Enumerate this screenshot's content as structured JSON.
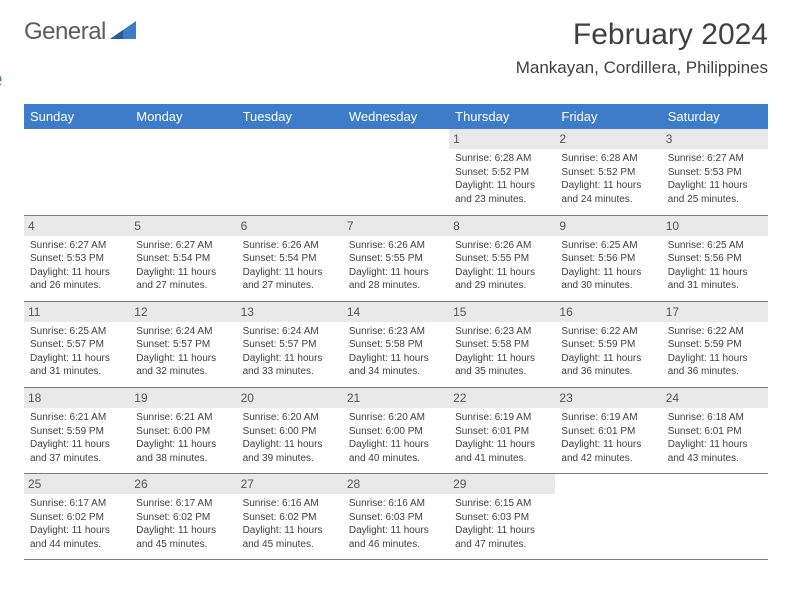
{
  "brand": {
    "part1": "General",
    "part2": "Blue"
  },
  "title": "February 2024",
  "location": "Mankayan, Cordillera, Philippines",
  "colors": {
    "header_bg": "#3d7cc9",
    "header_text": "#ffffff",
    "daybar_bg": "#e9e9e9",
    "border": "#7a7a7a",
    "text": "#404040"
  },
  "weekdays": [
    "Sunday",
    "Monday",
    "Tuesday",
    "Wednesday",
    "Thursday",
    "Friday",
    "Saturday"
  ],
  "weeks": [
    [
      null,
      null,
      null,
      null,
      {
        "n": "1",
        "sunrise": "6:28 AM",
        "sunset": "5:52 PM",
        "dlh": "11",
        "dlm": "23"
      },
      {
        "n": "2",
        "sunrise": "6:28 AM",
        "sunset": "5:52 PM",
        "dlh": "11",
        "dlm": "24"
      },
      {
        "n": "3",
        "sunrise": "6:27 AM",
        "sunset": "5:53 PM",
        "dlh": "11",
        "dlm": "25"
      }
    ],
    [
      {
        "n": "4",
        "sunrise": "6:27 AM",
        "sunset": "5:53 PM",
        "dlh": "11",
        "dlm": "26"
      },
      {
        "n": "5",
        "sunrise": "6:27 AM",
        "sunset": "5:54 PM",
        "dlh": "11",
        "dlm": "27"
      },
      {
        "n": "6",
        "sunrise": "6:26 AM",
        "sunset": "5:54 PM",
        "dlh": "11",
        "dlm": "27"
      },
      {
        "n": "7",
        "sunrise": "6:26 AM",
        "sunset": "5:55 PM",
        "dlh": "11",
        "dlm": "28"
      },
      {
        "n": "8",
        "sunrise": "6:26 AM",
        "sunset": "5:55 PM",
        "dlh": "11",
        "dlm": "29"
      },
      {
        "n": "9",
        "sunrise": "6:25 AM",
        "sunset": "5:56 PM",
        "dlh": "11",
        "dlm": "30"
      },
      {
        "n": "10",
        "sunrise": "6:25 AM",
        "sunset": "5:56 PM",
        "dlh": "11",
        "dlm": "31"
      }
    ],
    [
      {
        "n": "11",
        "sunrise": "6:25 AM",
        "sunset": "5:57 PM",
        "dlh": "11",
        "dlm": "31"
      },
      {
        "n": "12",
        "sunrise": "6:24 AM",
        "sunset": "5:57 PM",
        "dlh": "11",
        "dlm": "32"
      },
      {
        "n": "13",
        "sunrise": "6:24 AM",
        "sunset": "5:57 PM",
        "dlh": "11",
        "dlm": "33"
      },
      {
        "n": "14",
        "sunrise": "6:23 AM",
        "sunset": "5:58 PM",
        "dlh": "11",
        "dlm": "34"
      },
      {
        "n": "15",
        "sunrise": "6:23 AM",
        "sunset": "5:58 PM",
        "dlh": "11",
        "dlm": "35"
      },
      {
        "n": "16",
        "sunrise": "6:22 AM",
        "sunset": "5:59 PM",
        "dlh": "11",
        "dlm": "36"
      },
      {
        "n": "17",
        "sunrise": "6:22 AM",
        "sunset": "5:59 PM",
        "dlh": "11",
        "dlm": "36"
      }
    ],
    [
      {
        "n": "18",
        "sunrise": "6:21 AM",
        "sunset": "5:59 PM",
        "dlh": "11",
        "dlm": "37"
      },
      {
        "n": "19",
        "sunrise": "6:21 AM",
        "sunset": "6:00 PM",
        "dlh": "11",
        "dlm": "38"
      },
      {
        "n": "20",
        "sunrise": "6:20 AM",
        "sunset": "6:00 PM",
        "dlh": "11",
        "dlm": "39"
      },
      {
        "n": "21",
        "sunrise": "6:20 AM",
        "sunset": "6:00 PM",
        "dlh": "11",
        "dlm": "40"
      },
      {
        "n": "22",
        "sunrise": "6:19 AM",
        "sunset": "6:01 PM",
        "dlh": "11",
        "dlm": "41"
      },
      {
        "n": "23",
        "sunrise": "6:19 AM",
        "sunset": "6:01 PM",
        "dlh": "11",
        "dlm": "42"
      },
      {
        "n": "24",
        "sunrise": "6:18 AM",
        "sunset": "6:01 PM",
        "dlh": "11",
        "dlm": "43"
      }
    ],
    [
      {
        "n": "25",
        "sunrise": "6:17 AM",
        "sunset": "6:02 PM",
        "dlh": "11",
        "dlm": "44"
      },
      {
        "n": "26",
        "sunrise": "6:17 AM",
        "sunset": "6:02 PM",
        "dlh": "11",
        "dlm": "45"
      },
      {
        "n": "27",
        "sunrise": "6:16 AM",
        "sunset": "6:02 PM",
        "dlh": "11",
        "dlm": "45"
      },
      {
        "n": "28",
        "sunrise": "6:16 AM",
        "sunset": "6:03 PM",
        "dlh": "11",
        "dlm": "46"
      },
      {
        "n": "29",
        "sunrise": "6:15 AM",
        "sunset": "6:03 PM",
        "dlh": "11",
        "dlm": "47"
      },
      null,
      null
    ]
  ],
  "labels": {
    "sunrise": "Sunrise: ",
    "sunset": "Sunset: ",
    "daylight_pre": "Daylight: ",
    "hours": " hours",
    "and": "and ",
    "minutes": " minutes."
  }
}
